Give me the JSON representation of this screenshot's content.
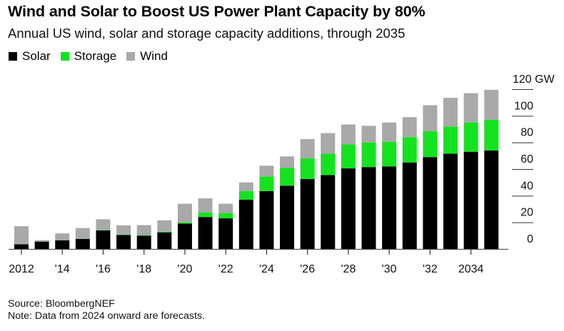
{
  "header": {
    "title": "Wind and Solar to Boost US Power Plant Capacity by 80%",
    "subtitle": "Annual US wind, solar and storage capacity additions, through 2035"
  },
  "legend": [
    {
      "label": "Solar",
      "color": "#000000"
    },
    {
      "label": "Storage",
      "color": "#15e21f"
    },
    {
      "label": "Wind",
      "color": "#a9a9a9"
    }
  ],
  "footer": {
    "source": "Source: BloombergNEF",
    "note": "Note: Data from 2024 onward are forecasts."
  },
  "chart_data": {
    "type": "bar",
    "stacked": true,
    "title": "Wind and Solar to Boost US Power Plant Capacity by 80%",
    "subtitle": "Annual US wind, solar and storage capacity additions, through 2035",
    "xlabel": "",
    "ylabel": "GW",
    "y_unit_label": "GW",
    "ylim": [
      0,
      120
    ],
    "y_ticks": [
      0,
      20,
      40,
      60,
      80,
      100,
      120
    ],
    "y_tick_labels": [
      "0",
      "20",
      "40",
      "60",
      "80",
      "100",
      "120 GW"
    ],
    "y_axis_side": "right",
    "grid": false,
    "legend_position": "top-left",
    "categories": [
      "2012",
      "2013",
      "2014",
      "2015",
      "2016",
      "2017",
      "2018",
      "2019",
      "2020",
      "2021",
      "2022",
      "2023",
      "2024",
      "2025",
      "2026",
      "2027",
      "2028",
      "2029",
      "2030",
      "2031",
      "2032",
      "2033",
      "2034",
      "2035"
    ],
    "x_tick_labels": [
      {
        "category": "2012",
        "label": "2012"
      },
      {
        "category": "2014",
        "label": "'14"
      },
      {
        "category": "2016",
        "label": "'16"
      },
      {
        "category": "2018",
        "label": "'18"
      },
      {
        "category": "2020",
        "label": "'20"
      },
      {
        "category": "2022",
        "label": "'22"
      },
      {
        "category": "2024",
        "label": "'24"
      },
      {
        "category": "2026",
        "label": "'26"
      },
      {
        "category": "2028",
        "label": "'28"
      },
      {
        "category": "2030",
        "label": "'30"
      },
      {
        "category": "2032",
        "label": "'32"
      },
      {
        "category": "2034",
        "label": "2034"
      }
    ],
    "series": [
      {
        "name": "Solar",
        "color": "#000000",
        "values": [
          3.5,
          5.5,
          6.5,
          7.5,
          14,
          10.5,
          10,
          12.5,
          19,
          24,
          23,
          37,
          43.5,
          47.5,
          52.5,
          55.5,
          60.5,
          61.5,
          62,
          65,
          69,
          71.5,
          73,
          74
        ]
      },
      {
        "name": "Storage",
        "color": "#15e21f",
        "values": [
          0.1,
          0.1,
          0.2,
          0.2,
          0.3,
          0.3,
          0.4,
          0.5,
          1,
          3.5,
          4,
          6.5,
          11,
          13.5,
          15.5,
          16,
          18,
          18.5,
          18.5,
          19,
          19.5,
          20.5,
          22,
          23
        ]
      },
      {
        "name": "Wind",
        "color": "#a9a9a9",
        "values": [
          13.5,
          1,
          5,
          8,
          8,
          7,
          7.5,
          8.5,
          14,
          10.5,
          7,
          6.5,
          8,
          8.5,
          14.5,
          15.5,
          15,
          12.5,
          14.5,
          15,
          19.5,
          21.5,
          22,
          22.5
        ]
      }
    ],
    "forecast_from": "2024"
  }
}
